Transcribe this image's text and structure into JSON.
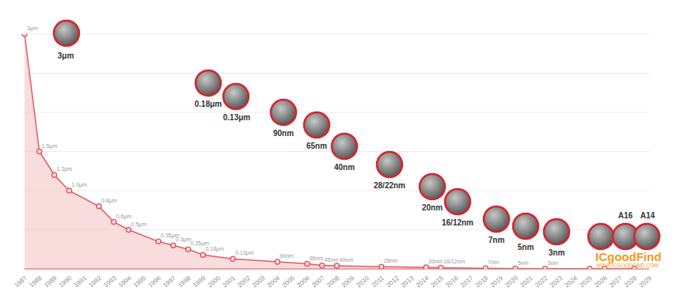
{
  "chart_data": {
    "type": "area",
    "categories": [
      "1987",
      "1988",
      "1989",
      "1990",
      "1991",
      "1992",
      "1993",
      "1994",
      "1995",
      "1996",
      "1997",
      "1998",
      "1999",
      "2000",
      "2001",
      "2002",
      "2003",
      "2004",
      "2005",
      "2006",
      "2007",
      "2008",
      "2009",
      "2010",
      "2011",
      "2012",
      "2013",
      "2014",
      "2015",
      "2016",
      "2017",
      "2018",
      "2019",
      "2020",
      "2021",
      "2022",
      "2023",
      "2024",
      "2025",
      "2026",
      "2027",
      "2028",
      "2029"
    ],
    "values": [
      3,
      1.5,
      1.2,
      1.0,
      null,
      0.8,
      0.6,
      0.5,
      null,
      0.35,
      0.3,
      0.25,
      0.18,
      null,
      0.13,
      null,
      null,
      0.09,
      null,
      0.065,
      0.045,
      0.04,
      null,
      null,
      0.028,
      null,
      null,
      0.02,
      0.016,
      null,
      null,
      0.007,
      null,
      0.005,
      null,
      0.003,
      null,
      null,
      0.002,
      0.0016,
      null,
      0.0014,
      null
    ],
    "value_labels": [
      "3μm",
      "1.5μm",
      "1.2μm",
      "1.0μm",
      null,
      "0.8μm",
      "0.6μm",
      "0.5μm",
      null,
      "0.35μm",
      "0.3μm",
      "0.25μm",
      "0.18μm",
      null,
      "0.13μm",
      null,
      null,
      "90nm",
      null,
      "65nm",
      "45nm",
      "40nm",
      null,
      null,
      "28nm",
      null,
      null,
      "20nm",
      "16/12nm",
      null,
      null,
      "7nm",
      null,
      "5nm",
      null,
      "3nm",
      null,
      null,
      null,
      null,
      null,
      null,
      null
    ],
    "color": "#e25a60",
    "marker": "circle",
    "data_labels": true,
    "ylim": [
      0,
      3
    ],
    "yticks": [
      0,
      0.5,
      1,
      1.5,
      2,
      2.5,
      3
    ],
    "grid": true,
    "tick_labels": "x",
    "annotations": [
      {
        "label": "3μm"
      },
      {
        "label": "0.18μm"
      },
      {
        "label": "0.13μm"
      },
      {
        "label": "90nm"
      },
      {
        "label": "65nm"
      },
      {
        "label": "40nm"
      },
      {
        "label": "28/22nm"
      },
      {
        "label": "20nm"
      },
      {
        "label": "16/12nm"
      },
      {
        "label": "7nm"
      },
      {
        "label": "5nm"
      },
      {
        "label": "3nm"
      },
      {
        "label": "A16"
      },
      {
        "label": "A14"
      }
    ]
  },
  "watermark": {
    "title": "ICgoodFind",
    "url": "WWW.ICGOODFIND.COM"
  }
}
